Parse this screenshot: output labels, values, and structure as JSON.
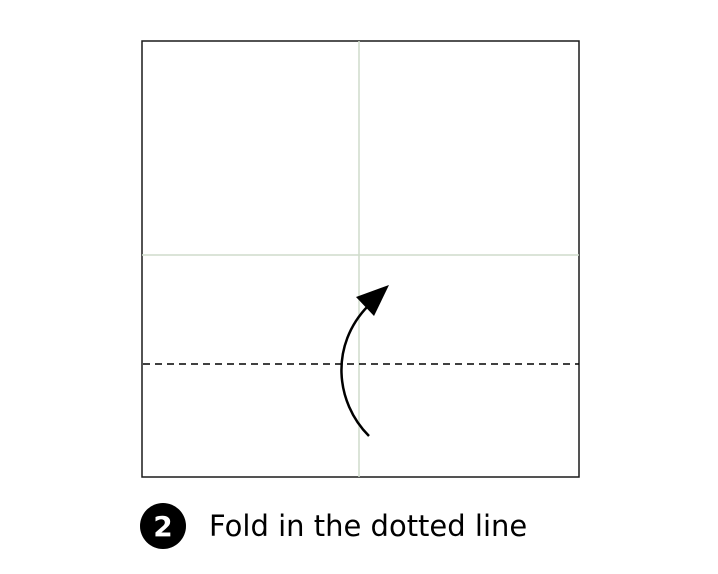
{
  "step": {
    "number": "2",
    "instruction": "Fold in the dotted line"
  },
  "colors": {
    "paper_border": "#1a1a1a",
    "crease": "#cfdccb",
    "fold_line": "#000000",
    "arrow": "#000000",
    "badge_bg": "#000000",
    "badge_text": "#ffffff"
  }
}
